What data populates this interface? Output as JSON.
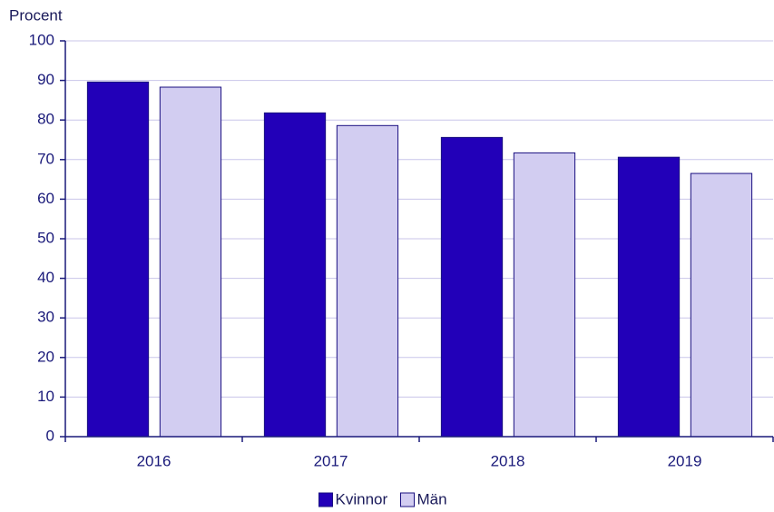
{
  "chart_data": {
    "type": "bar",
    "y_label": "Procent",
    "categories": [
      "2016",
      "2017",
      "2018",
      "2019"
    ],
    "series": [
      {
        "name": "Kvinnor",
        "color": "#2200b8",
        "values": [
          89.6,
          81.8,
          75.6,
          70.6
        ]
      },
      {
        "name": "Män",
        "color": "#d2cdf1",
        "values": [
          88.3,
          78.6,
          71.7,
          66.5
        ]
      }
    ],
    "ylim": [
      0,
      100
    ],
    "yticks": [
      0,
      10,
      20,
      30,
      40,
      50,
      60,
      70,
      80,
      90,
      100
    ],
    "grid": true,
    "legend": "bottom"
  }
}
